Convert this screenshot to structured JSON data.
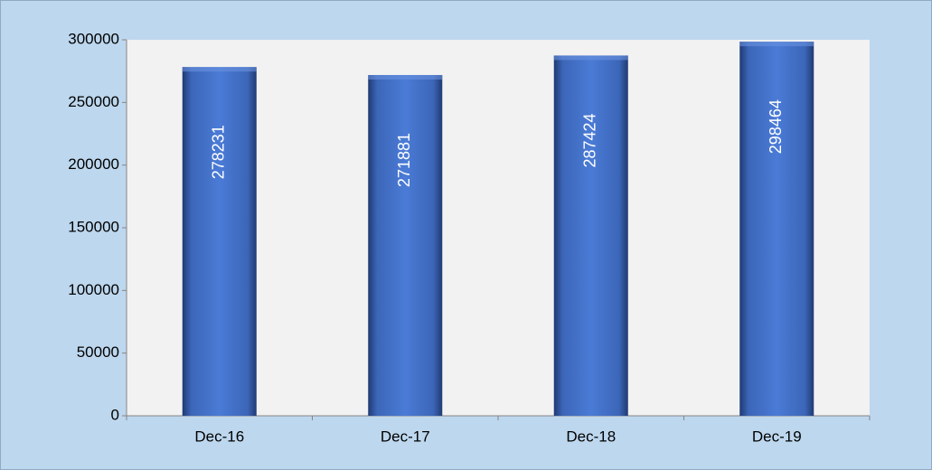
{
  "chart_data": {
    "type": "bar",
    "categories": [
      "Dec-16",
      "Dec-17",
      "Dec-18",
      "Dec-19"
    ],
    "values": [
      278231,
      271881,
      287424,
      298464
    ],
    "color": "#4472c4",
    "ylim": [
      0,
      300000
    ],
    "yticks": [
      0,
      50000,
      100000,
      150000,
      200000,
      250000,
      300000
    ],
    "grid": false
  }
}
